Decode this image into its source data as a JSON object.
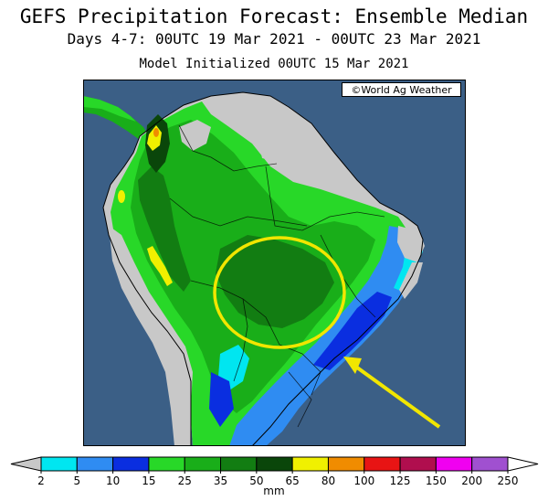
{
  "header": {
    "title": "GEFS Precipitation Forecast: Ensemble Median",
    "subtitle": "Days 4-7: 00UTC 19 Mar 2021 - 00UTC 23 Mar 2021",
    "init": "Model Initialized 00UTC 15 Mar 2021"
  },
  "map": {
    "credit": "©World Ag Weather",
    "colors": {
      "ocean": "#3b5f86",
      "frame": "#000000",
      "highlight_circle": "#f1e600",
      "arrow": "#f1e600"
    }
  },
  "legend": {
    "unit": "mm",
    "ticks": [
      "2",
      "5",
      "10",
      "15",
      "25",
      "35",
      "50",
      "65",
      "80",
      "100",
      "125",
      "150",
      "200",
      "250"
    ],
    "colors": [
      "#c8c8c8",
      "#00e6f0",
      "#2f8cf2",
      "#0a2ee0",
      "#28d828",
      "#19ae19",
      "#127d12",
      "#0a460a",
      "#f0f000",
      "#f08c00",
      "#e81414",
      "#b00e4e",
      "#f000f0",
      "#a050d0",
      "#ffffff"
    ]
  }
}
